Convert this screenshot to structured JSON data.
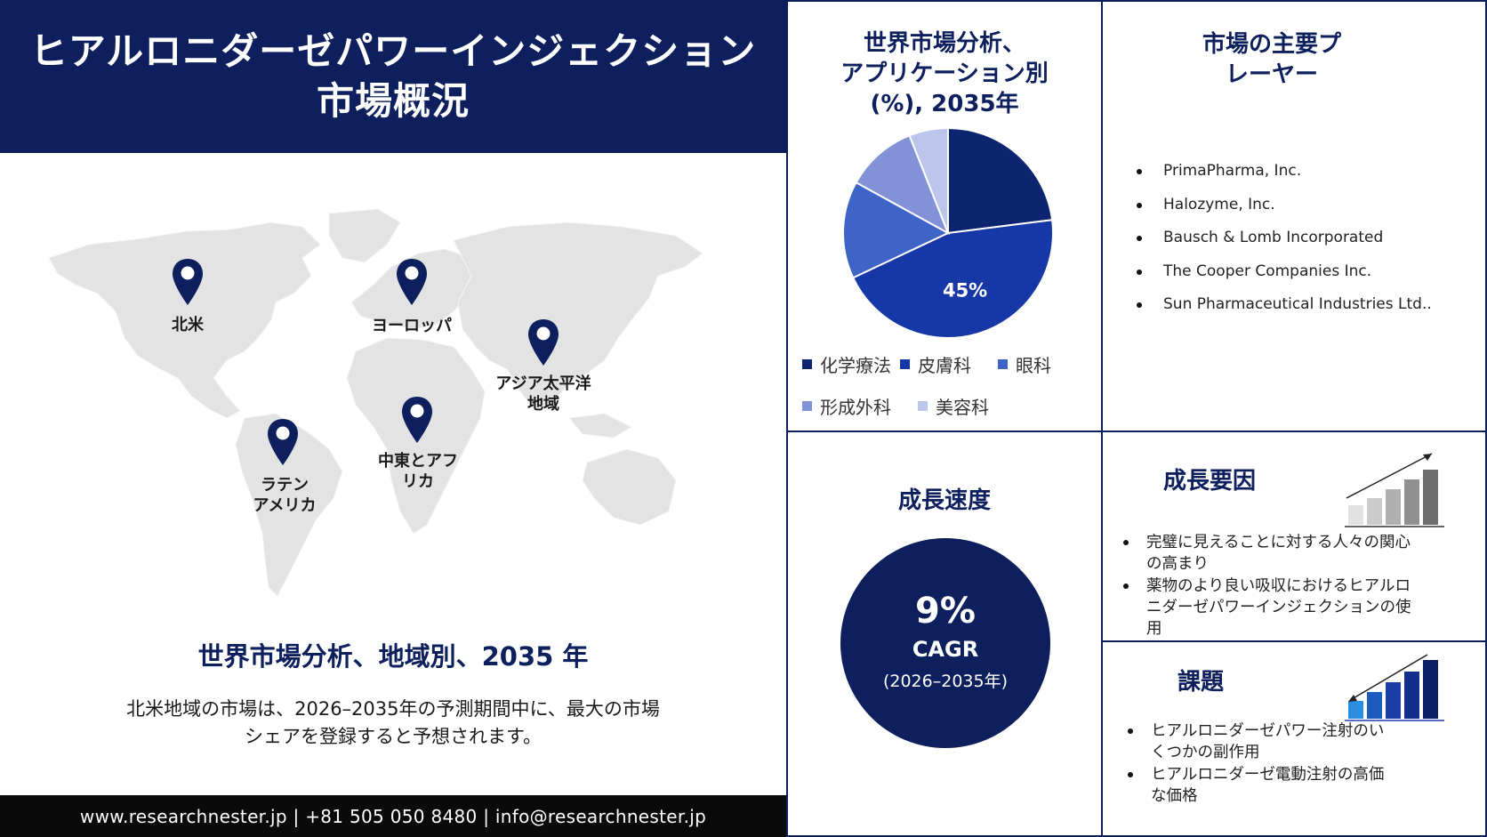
{
  "header": {
    "title_line1": "ヒアルロニダーゼパワーインジェクション",
    "title_line2": "市場概況"
  },
  "map": {
    "pins": [
      {
        "label_line1": "北米",
        "label_line2": ""
      },
      {
        "label_line1": "ヨーロッパ",
        "label_line2": ""
      },
      {
        "label_line1": "アジア太平洋",
        "label_line2": "地域"
      },
      {
        "label_line1": "ラテン",
        "label_line2": "アメリカ"
      },
      {
        "label_line1": "中東とアフ",
        "label_line2": "リカ"
      }
    ]
  },
  "region": {
    "heading": "世界市場分析、地域別、2035 年",
    "text_line1": "北米地域の市場は、2026–2035年の予測期間中に、最大の市場",
    "text_line2": "シェアを登録すると予想されます。"
  },
  "footer": {
    "contact": "www.researchnester.jp | +81 505 050 8480 | info@researchnester.jp"
  },
  "pie": {
    "title_line1": "世界市場分析、",
    "title_line2": "アプリケーション別",
    "title_line3": "(%), 2035年",
    "label": "45%"
  },
  "chart_data": {
    "type": "pie",
    "title": "世界市場分析、アプリケーション別 (%), 2035年",
    "categories": [
      "化学療法",
      "皮膚科",
      "眼科",
      "形成外科",
      "美容科"
    ],
    "values": [
      23,
      45,
      15,
      11,
      6
    ],
    "colors": [
      "#0d2470",
      "#1637a6",
      "#3d64c6",
      "#8193d6",
      "#bcc6ea"
    ],
    "legend": "bottom"
  },
  "players": {
    "title_line1": "市場の主要プ",
    "title_line2": "レーヤー",
    "items": [
      "PrimaPharma, Inc.",
      "Halozyme, Inc.",
      "Bausch & Lomb Incorporated",
      "The Cooper Companies Inc.",
      "Sun Pharmaceutical Industries Ltd.."
    ]
  },
  "growth_rate": {
    "title": "成長速度",
    "value": "9%",
    "metric": "CAGR",
    "period": "(2026–2035年)"
  },
  "drivers": {
    "title": "成長要因",
    "items": [
      "完璧に見えることに対する人々の関心の高まり",
      "薬物のより良い吸収におけるヒアルロニダーゼパワーインジェクションの使用"
    ]
  },
  "challenges": {
    "title": "課題",
    "items": [
      "ヒアルロニダーゼパワー注射のいくつかの副作用",
      "ヒアルロニダーゼ電動注射の高価な価格"
    ]
  }
}
